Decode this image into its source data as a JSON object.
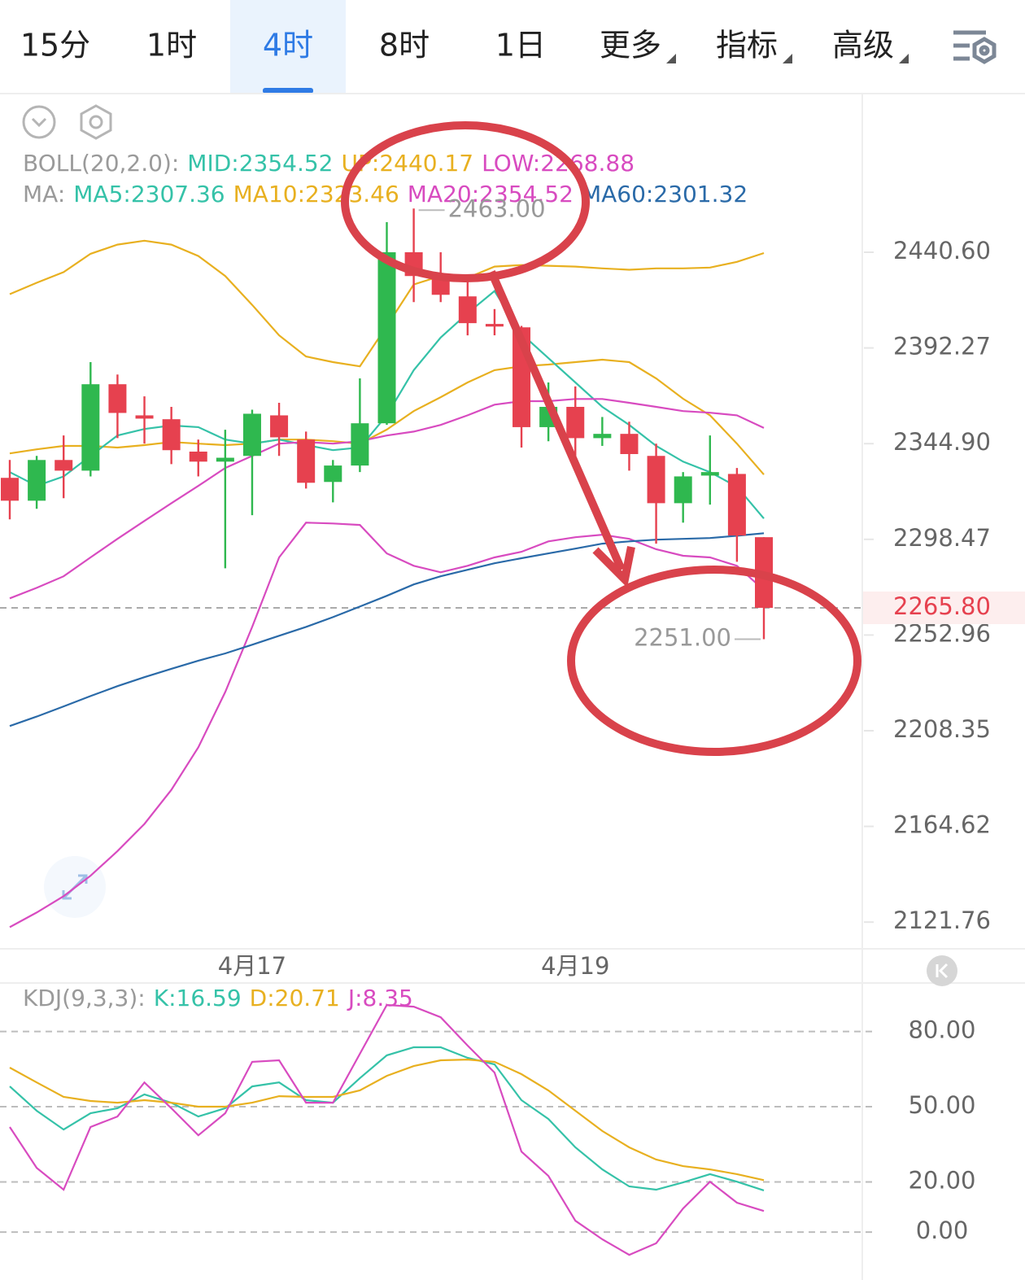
{
  "tabs": [
    "15分",
    "1时",
    "4时",
    "8时",
    "1日",
    "更多",
    "指标",
    "高级"
  ],
  "tab_dropdown": [
    false,
    false,
    false,
    false,
    false,
    true,
    true,
    true
  ],
  "active_tab": 2,
  "chart_data": [
    {
      "type": "candlestick",
      "legend_rows": [
        [
          {
            "text": "BOLL(20,2.0):",
            "color": "#9a9a9a"
          },
          {
            "text": "MID:2354.52",
            "color": "#35c2a8"
          },
          {
            "text": "UP:2440.17",
            "color": "#e8b020"
          },
          {
            "text": "LOW:2268.88",
            "color": "#d84bc0"
          }
        ],
        [
          {
            "text": "MA:",
            "color": "#9a9a9a"
          },
          {
            "text": "MA5:2307.36",
            "color": "#35c2a8"
          },
          {
            "text": "MA10:2323.46",
            "color": "#e8b020"
          },
          {
            "text": "MA20:2354.52",
            "color": "#d84bc0"
          },
          {
            "text": "MA60:2301.32",
            "color": "#2a6aa8"
          }
        ]
      ],
      "categories": [
        null,
        null,
        null,
        null,
        null,
        null,
        null,
        null,
        null,
        "4月17",
        null,
        null,
        null,
        null,
        null,
        null,
        null,
        null,
        null,
        null,
        null,
        "4月19",
        null,
        null,
        null,
        null,
        null,
        null,
        null
      ],
      "open": [
        2328.2,
        2317.1,
        2336.9,
        2331.7,
        2374.2,
        2358.8,
        2356.9,
        2341.0,
        2336.1,
        2338.9,
        2358.8,
        2346.9,
        2326.2,
        2334.2,
        2354.9,
        2440.6,
        2428.5,
        2418.2,
        2404.3,
        2402.6,
        2353.0,
        2363.0,
        2347.6,
        2349.7,
        2338.9,
        2315.9,
        2329.3,
        2330.1,
        2299.5
      ],
      "close": [
        2317.1,
        2336.9,
        2331.7,
        2374.2,
        2360.0,
        2357.2,
        2341.7,
        2336.1,
        2338.0,
        2359.6,
        2348.0,
        2325.8,
        2334.2,
        2354.9,
        2440.6,
        2428.5,
        2419.0,
        2404.7,
        2403.0,
        2353.0,
        2363.0,
        2347.6,
        2349.7,
        2339.8,
        2315.9,
        2328.9,
        2331.0,
        2300.3,
        2265.8
      ],
      "high": [
        2336.9,
        2338.9,
        2348.9,
        2385.2,
        2379.0,
        2368.2,
        2363.0,
        2346.9,
        2351.7,
        2361.6,
        2365.0,
        2350.8,
        2336.9,
        2377.1,
        2456.0,
        2463.0,
        2440.6,
        2426.4,
        2411.8,
        2403.3,
        2375.1,
        2373.1,
        2358.0,
        2355.7,
        2344.9,
        2331.0,
        2348.9,
        2333.0,
        2299.5
      ],
      "low": [
        2308.1,
        2313.2,
        2318.3,
        2328.9,
        2347.6,
        2344.9,
        2334.9,
        2328.9,
        2284.6,
        2310.1,
        2338.9,
        2323.0,
        2316.3,
        2331.0,
        2354.1,
        2415.3,
        2415.3,
        2398.6,
        2398.6,
        2343.0,
        2346.1,
        2338.9,
        2343.8,
        2331.7,
        2296.4,
        2306.5,
        2315.2,
        2287.7,
        2251.0
      ],
      "up_color": "#2fb84f",
      "down_color": "#e6414f",
      "series": [
        {
          "color": "#e8b020",
          "values": [
            2419.3,
            2425.1,
            2430.5,
            2439.8,
            2444.5,
            2446.5,
            2444.5,
            2438.7,
            2428.5,
            2413.9,
            2398.6,
            2388.0,
            2385.2,
            2383.1,
            2403.3,
            2424.2,
            2428.5,
            2427.6,
            2433.3,
            2434.1,
            2433.7,
            2433.3,
            2432.4,
            2431.7,
            2432.4,
            2432.4,
            2432.8,
            2435.7,
            2440.2
          ]
        },
        {
          "color": "#e8b020",
          "values": [
            2340.1,
            2342.1,
            2343.8,
            2343.8,
            2343.0,
            2344.2,
            2345.7,
            2344.9,
            2344.2,
            2344.9,
            2346.9,
            2346.9,
            2346.1,
            2344.9,
            2351.8,
            2360.9,
            2367.8,
            2375.1,
            2381.2,
            2383.1,
            2384.0,
            2385.2,
            2386.4,
            2385.2,
            2377.1,
            2367.0,
            2358.8,
            2344.9,
            2329.8
          ]
        },
        {
          "color": "#35c2a8",
          "values": [
            2331.0,
            2324.3,
            2328.9,
            2338.9,
            2348.9,
            2352.1,
            2353.8,
            2353.0,
            2346.9,
            2344.9,
            2346.9,
            2344.2,
            2341.7,
            2343.0,
            2358.8,
            2381.2,
            2397.5,
            2409.7,
            2420.9,
            2399.4,
            2387.2,
            2375.1,
            2363.0,
            2354.1,
            2343.8,
            2336.1,
            2331.0,
            2323.9,
            2308.5
          ]
        },
        {
          "color": "#d84bc0",
          "values": [
            2270.3,
            2275.3,
            2280.8,
            2289.8,
            2298.7,
            2307.3,
            2315.9,
            2324.3,
            2333.0,
            2338.9,
            2344.9,
            2345.7,
            2344.9,
            2346.1,
            2348.9,
            2350.8,
            2354.1,
            2358.8,
            2364.1,
            2365.8,
            2365.8,
            2366.9,
            2366.9,
            2365.0,
            2363.0,
            2360.9,
            2360.1,
            2358.8,
            2352.6
          ]
        },
        {
          "color": "#d84bc0",
          "values": [
            2119.5,
            2126.0,
            2133.3,
            2142.4,
            2153.5,
            2165.7,
            2181.2,
            2200.7,
            2226.3,
            2256.8,
            2289.8,
            2306.5,
            2306.1,
            2305.4,
            2291.7,
            2285.8,
            2282.7,
            2285.8,
            2289.8,
            2292.5,
            2297.5,
            2299.5,
            2300.7,
            2298.7,
            2293.7,
            2290.6,
            2289.8,
            2285.8,
            2274.2
          ]
        },
        {
          "color": "#2a6aa8",
          "values": [
            2210.5,
            2214.9,
            2219.6,
            2224.4,
            2229.0,
            2233.2,
            2237.1,
            2240.9,
            2244.3,
            2248.4,
            2252.6,
            2256.8,
            2261.4,
            2266.4,
            2271.5,
            2276.9,
            2280.8,
            2283.9,
            2287.0,
            2289.4,
            2291.7,
            2294.0,
            2296.4,
            2297.5,
            2298.3,
            2298.7,
            2299.1,
            2300.2,
            2301.4
          ]
        }
      ],
      "ylim": [
        2110.3,
        2522.9
      ],
      "log_scale": true,
      "yticks": [
        {
          "value": 2440.6,
          "label": "2440.60"
        },
        2392.27,
        {
          "value": 2344.9,
          "label": "2344.90"
        },
        2298.47,
        2252.96,
        2208.35,
        2164.62,
        2121.76
      ],
      "last_price": {
        "value": 2265.8,
        "label": "2265.80"
      },
      "last_price_color": "#e6414f",
      "high_label": "2463.00",
      "low_label": "2251.00"
    },
    {
      "type": "line",
      "legend_rows": [
        [
          {
            "text": "KDJ(9,3,3):",
            "color": "#9a9a9a"
          },
          {
            "text": "K:16.59",
            "color": "#35c2a8"
          },
          {
            "text": "D:20.71",
            "color": "#e8b020"
          },
          {
            "text": "J:8.35",
            "color": "#d84bc0"
          }
        ]
      ],
      "series": [
        {
          "color": "#35c2a8",
          "values": [
            58.1,
            48.4,
            40.9,
            47.4,
            49.4,
            54.9,
            51.6,
            46.1,
            49.4,
            58.1,
            59.7,
            52.6,
            51.6,
            61.4,
            70.5,
            73.7,
            73.7,
            69.5,
            66.9,
            52.6,
            45.1,
            33.8,
            25.0,
            18.2,
            16.9,
            19.8,
            23.1,
            20.1,
            16.6
          ]
        },
        {
          "color": "#e8b020",
          "values": [
            65.6,
            59.7,
            53.9,
            52.3,
            51.6,
            52.6,
            51.6,
            50.0,
            50.0,
            51.6,
            54.2,
            53.9,
            53.9,
            56.5,
            62.3,
            66.2,
            68.5,
            68.8,
            67.9,
            63.0,
            56.5,
            48.4,
            40.3,
            33.8,
            28.9,
            26.3,
            25.0,
            23.1,
            20.7
          ]
        },
        {
          "color": "#d84bc0",
          "values": [
            41.9,
            25.6,
            16.9,
            41.9,
            46.1,
            59.7,
            49.4,
            38.6,
            47.4,
            67.9,
            68.5,
            51.6,
            51.6,
            71.1,
            90.6,
            89.9,
            85.7,
            74.4,
            63.6,
            32.1,
            22.4,
            4.5,
            -2.9,
            -9.1,
            -4.5,
            9.4,
            20.1,
            11.7,
            8.4
          ]
        }
      ],
      "ylim": [
        -17.5,
        98.7
      ],
      "yticks": [
        {
          "value": 80,
          "label": "80.00"
        },
        {
          "value": 50,
          "label": "50.00"
        },
        {
          "value": 20,
          "label": "20.00"
        },
        {
          "value": 0,
          "label": "0.00"
        }
      ],
      "grid": true
    }
  ]
}
